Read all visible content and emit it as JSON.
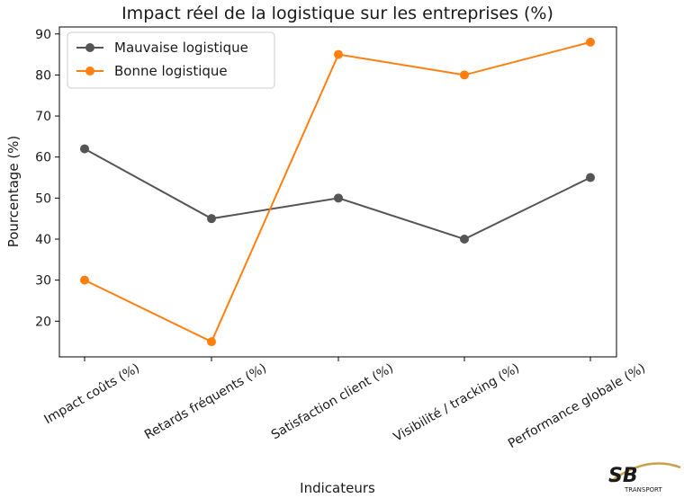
{
  "chart_data": {
    "type": "line",
    "title": "Impact réel de la logistique sur les entreprises (%)",
    "xlabel": "Indicateurs",
    "ylabel": "Pourcentage (%)",
    "categories": [
      "Impact coûts (%)",
      "Retards fréquents (%)",
      "Satisfaction client (%)",
      "Visibilité / tracking (%)",
      "Performance globale (%)"
    ],
    "ylim": [
      11.3,
      91.7
    ],
    "yticks": [
      20,
      30,
      40,
      50,
      60,
      70,
      80,
      90
    ],
    "grid": false,
    "legend_position": "top-left",
    "series": [
      {
        "name": "Mauvaise logistique",
        "values": [
          62,
          45,
          50,
          40,
          55
        ],
        "color": "#555555"
      },
      {
        "name": "Bonne logistique",
        "values": [
          30,
          15,
          85,
          80,
          88
        ],
        "color": "#ff7f0e"
      }
    ]
  },
  "logo": {
    "mark": "SB",
    "text": "TRANSPORT"
  }
}
